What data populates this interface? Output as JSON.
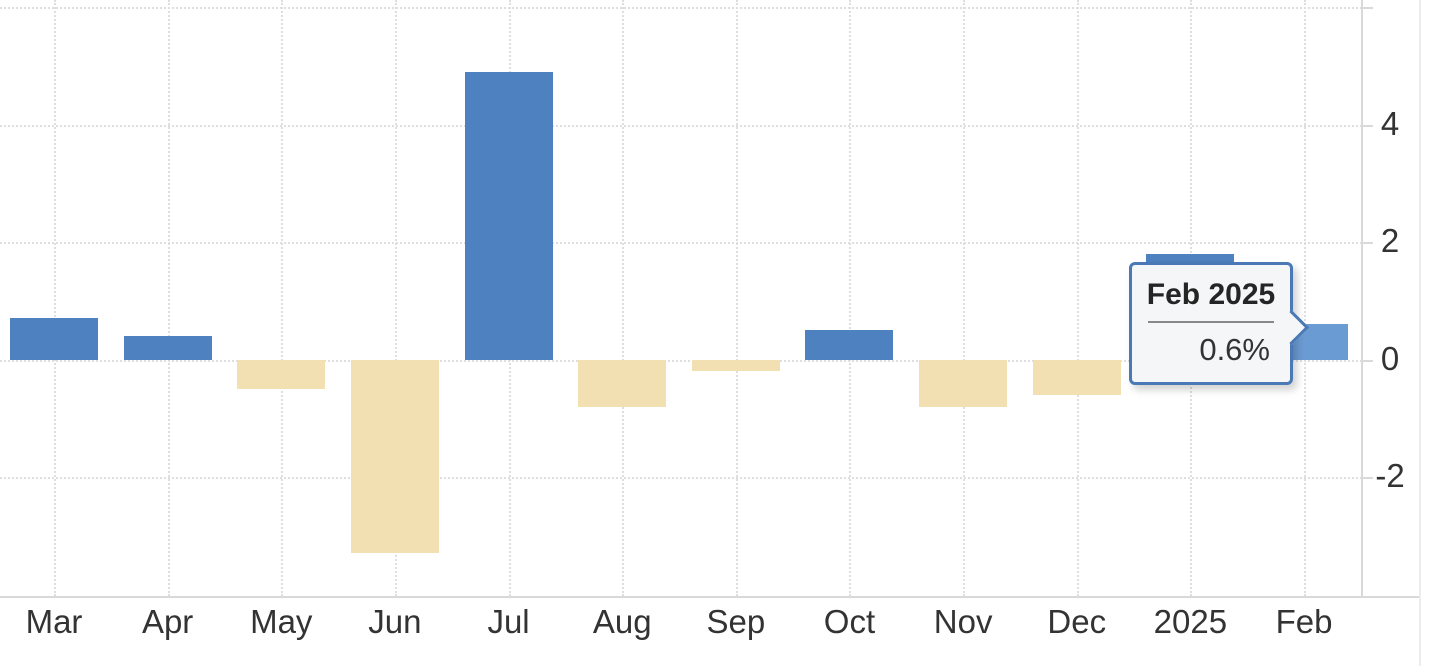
{
  "chart_data": {
    "type": "bar",
    "title": "",
    "categories": [
      "Mar",
      "Apr",
      "May",
      "Jun",
      "Jul",
      "Aug",
      "Sep",
      "Oct",
      "Nov",
      "Dec",
      "2025",
      "Feb"
    ],
    "values": [
      0.7,
      0.4,
      -0.5,
      -3.3,
      4.9,
      -0.8,
      -0.2,
      0.5,
      -0.8,
      -0.6,
      1.8,
      0.6
    ],
    "unit": "%",
    "highlighted_index": 11,
    "yticks": [
      4,
      2,
      0,
      -2
    ],
    "ylim": [
      -4,
      6
    ],
    "grid": "dotted",
    "legend_position": "none",
    "colors": {
      "positive_bar": "#4e81bf",
      "negative_bar": "#f2dfb2",
      "highlighted_bar": "#6b9bd3",
      "gridline": "#dedede",
      "axis_line": "#d9d9d9",
      "label_text": "#333333"
    }
  },
  "tooltip": {
    "title": "Feb 2025",
    "value": "0.6%",
    "border_color": "#4a79b5",
    "background_color": "#f4f6f7"
  }
}
